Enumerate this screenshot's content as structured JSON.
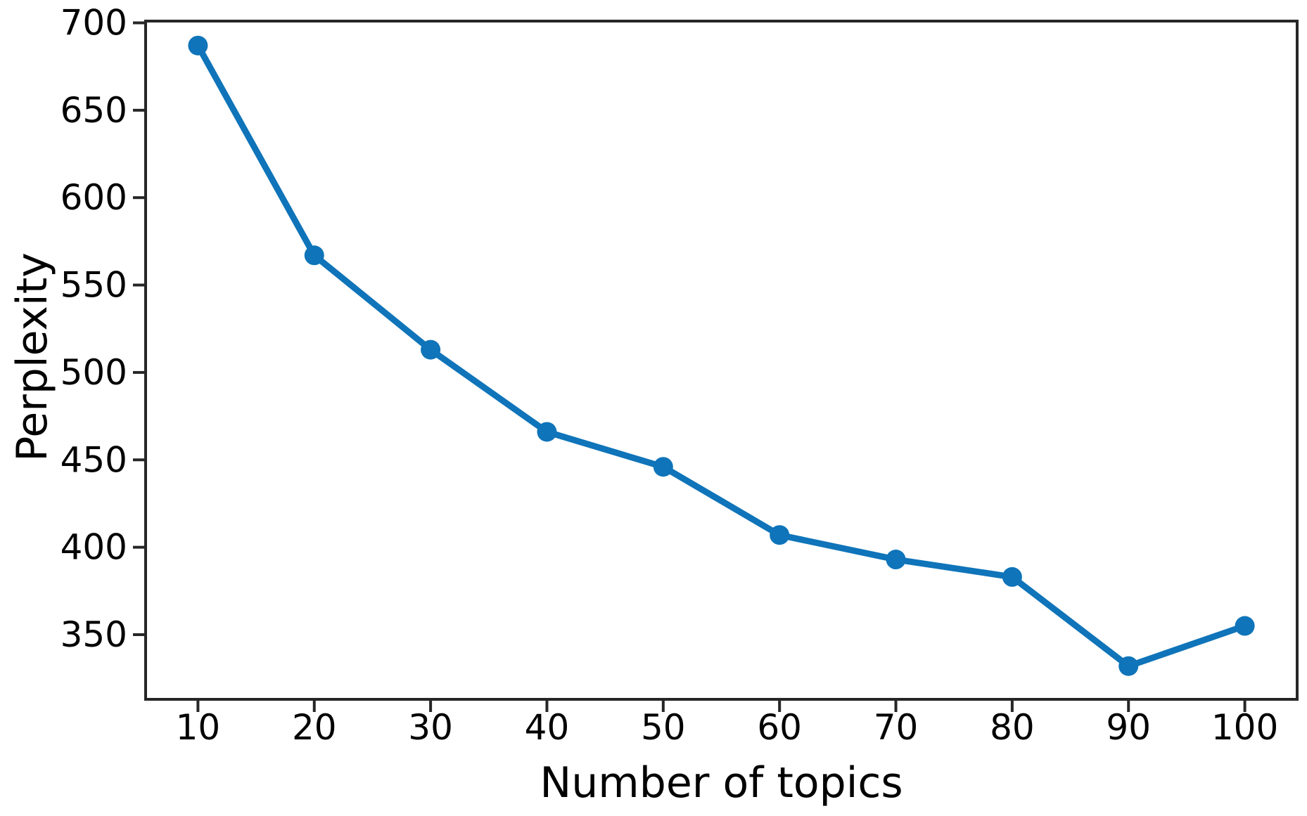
{
  "chart_data": {
    "type": "line",
    "title": "",
    "xlabel": "Number of topics",
    "ylabel": "Perplexity",
    "x": [
      10,
      20,
      30,
      40,
      50,
      60,
      70,
      80,
      90,
      100
    ],
    "y": [
      687,
      567,
      513,
      466,
      446,
      407,
      393,
      383,
      332,
      355
    ],
    "x_ticks": [
      10,
      20,
      30,
      40,
      50,
      60,
      70,
      80,
      90,
      100
    ],
    "y_ticks": [
      350,
      400,
      450,
      500,
      550,
      600,
      650,
      700
    ],
    "xlim": [
      5.5,
      104.5
    ],
    "ylim": [
      313,
      701
    ],
    "grid": false,
    "legend_position": "none",
    "line_color": "#0f74b9",
    "marker": "circle",
    "axis_color": "#262626",
    "text_color": "#000000",
    "background_color": "#ffffff"
  }
}
